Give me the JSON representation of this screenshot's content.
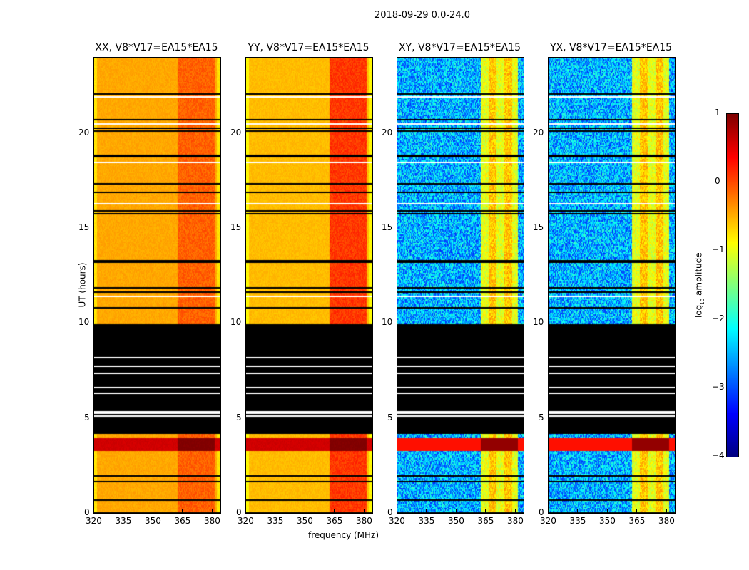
{
  "chart_data": {
    "type": "heatmap",
    "suptitle": "2018-09-29 0.0-24.0",
    "xlabel": "frequency (MHz)",
    "ylabel": "UT (hours)",
    "xlim": [
      320,
      384
    ],
    "ylim": [
      0,
      24
    ],
    "xticks": [
      "320",
      "335",
      "350",
      "365",
      "380"
    ],
    "xtick_values": [
      320,
      335,
      350,
      365,
      380
    ],
    "yticks": [
      "0",
      "5",
      "10",
      "15",
      "20"
    ],
    "ytick_values": [
      0,
      5,
      10,
      15,
      20
    ],
    "colorbar": {
      "label": "log10 amplitude",
      "label_main": "log",
      "label_sub": "10",
      "label_rest": " amplitude",
      "colormap": "jet",
      "range": [
        -4,
        1
      ],
      "ticks": [
        "1",
        "0",
        "−1",
        "−2",
        "−3",
        "−4"
      ],
      "tick_values": [
        1,
        0,
        -1,
        -2,
        -3,
        -4
      ]
    },
    "flagged_ut_ranges": [
      [
        4.2,
        10.0
      ]
    ],
    "strong_signal_ut_range": [
      3.3,
      4.0
    ],
    "rfi_freq_range_mhz": [
      362,
      381
    ],
    "panels": [
      {
        "title": "XX, V8*V17=EA15*EA15",
        "typical_log_amp": -0.45,
        "rfi_log_amp": -0.1
      },
      {
        "title": "YY, V8*V17=EA15*EA15",
        "typical_log_amp": -0.55,
        "rfi_log_amp": 0.1
      },
      {
        "title": "XY, V8*V17=EA15*EA15",
        "typical_log_amp": -2.5,
        "rfi_log_amp": -1.0
      },
      {
        "title": "YX, V8*V17=EA15*EA15",
        "typical_log_amp": -2.5,
        "rfi_log_amp": -1.0
      }
    ]
  }
}
